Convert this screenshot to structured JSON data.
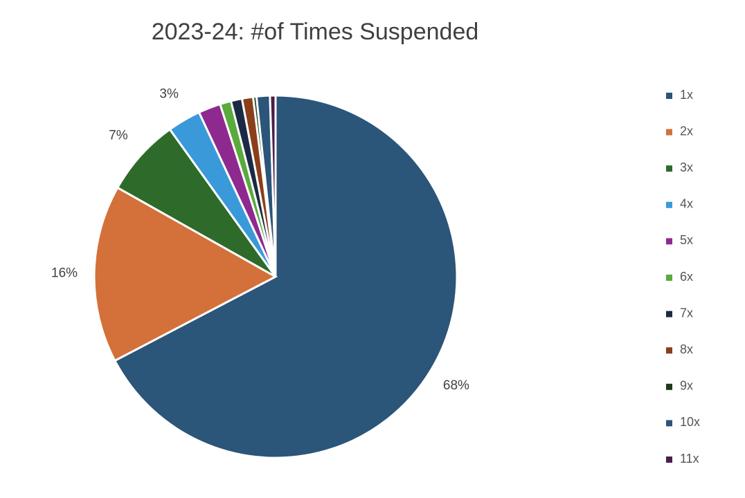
{
  "chart_data": {
    "type": "pie",
    "title": "2023-24: #of Times Suspended",
    "categories": [
      "1x",
      "2x",
      "3x",
      "4x",
      "5x",
      "6x",
      "7x",
      "8x",
      "9x",
      "10x",
      "11x"
    ],
    "values": [
      68,
      16,
      7,
      3,
      2,
      1,
      1,
      1,
      0.3,
      1.2,
      0.5
    ],
    "value_labels": [
      "68%",
      "16%",
      "7%",
      "3%",
      null,
      null,
      null,
      null,
      null,
      null,
      null
    ],
    "colors": [
      "#2b5579",
      "#d4703a",
      "#2e6b2a",
      "#3a9ad9",
      "#8e2a8f",
      "#5aaa3c",
      "#1b2a44",
      "#8b3e1a",
      "#1e3a1a",
      "#2b5579",
      "#4a1d4a"
    ],
    "legend": "right"
  }
}
